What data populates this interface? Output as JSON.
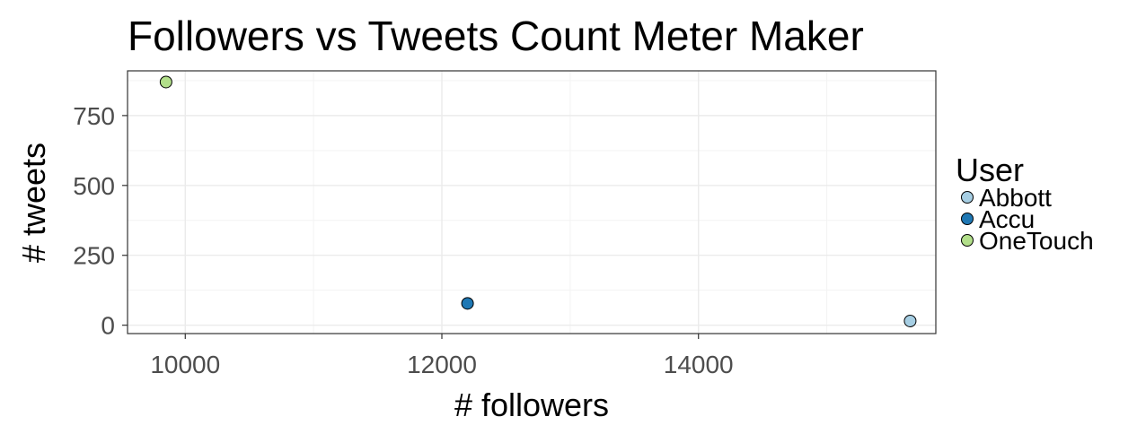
{
  "chart_data": {
    "type": "scatter",
    "title": "Followers vs Tweets Count Meter Maker",
    "xlabel": "# followers",
    "ylabel": "# tweets",
    "xlim": [
      9550,
      15850
    ],
    "ylim": [
      -30,
      910
    ],
    "xticks": [
      10000,
      12000,
      14000
    ],
    "yticks": [
      0,
      250,
      500,
      750
    ],
    "grid": true,
    "legend": {
      "title": "User",
      "position": "right",
      "entries": [
        "Abbott",
        "Accu",
        "OneTouch"
      ]
    },
    "series": [
      {
        "name": "Abbott",
        "color": "#a6cee3",
        "points": [
          {
            "x": 15650,
            "y": 15
          }
        ]
      },
      {
        "name": "Accu",
        "color": "#1f78b4",
        "points": [
          {
            "x": 12200,
            "y": 78
          }
        ]
      },
      {
        "name": "OneTouch",
        "color": "#b2df8a",
        "points": [
          {
            "x": 9850,
            "y": 870
          }
        ]
      }
    ]
  }
}
